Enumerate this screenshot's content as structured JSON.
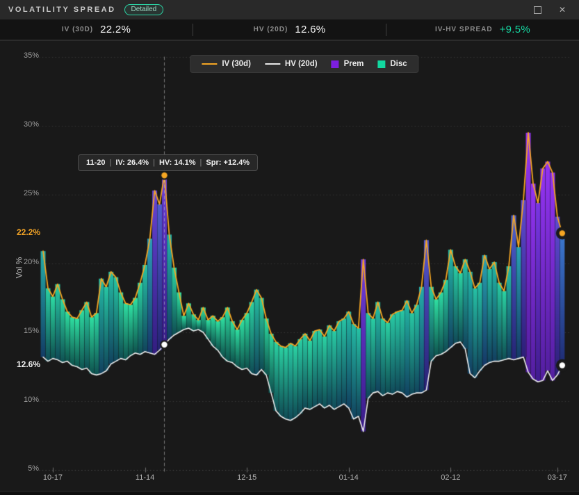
{
  "window": {
    "title": "VOLATILITY SPREAD",
    "badge": "Detailed",
    "controls": {
      "close": "✕"
    }
  },
  "stats": {
    "items": [
      {
        "label": "IV (30D)",
        "value": "22.2%",
        "color": "#f2f2f2"
      },
      {
        "label": "HV (20D)",
        "value": "12.6%",
        "color": "#f2f2f2"
      },
      {
        "label": "IV-HV SPREAD",
        "value": "+9.5%",
        "color": "#15d8a2"
      }
    ]
  },
  "legend": {
    "items": [
      {
        "label": "IV (30d)",
        "type": "line",
        "color": "#f5a623"
      },
      {
        "label": "HV (20d)",
        "type": "line",
        "color": "#e8e8e8"
      },
      {
        "label": "Prem",
        "type": "square",
        "color": "#7c1fe0"
      },
      {
        "label": "Disc",
        "type": "square",
        "color": "#12d8a0"
      }
    ]
  },
  "tooltip": {
    "date": "11-20",
    "sep": "|",
    "iv": "IV: 26.4%",
    "hv": "HV: 14.1%",
    "spread": "Spr: +12.4%"
  },
  "axis_current": {
    "iv_label": "22.2%",
    "hv_label": "12.6%"
  },
  "chart_data": {
    "type": "area",
    "ylabel": "Vol %",
    "ylim": [
      5,
      35
    ],
    "grid": "dotted-horizontal",
    "legend_position": "top-center",
    "yticks": [
      {
        "v": 35,
        "label": "35%"
      },
      {
        "v": 30,
        "label": "30%"
      },
      {
        "v": 25,
        "label": "25%"
      },
      {
        "v": 20,
        "label": "20%"
      },
      {
        "v": 15,
        "label": "15%"
      },
      {
        "v": 10,
        "label": "10%"
      },
      {
        "v": 5,
        "label": "5%"
      }
    ],
    "xticks": [
      {
        "i": 2,
        "label": "10-17"
      },
      {
        "i": 21,
        "label": "11-14"
      },
      {
        "i": 42,
        "label": "12-15"
      },
      {
        "i": 63,
        "label": "01-14"
      },
      {
        "i": 84,
        "label": "02-12"
      },
      {
        "i": 106,
        "label": "03-17"
      }
    ],
    "series": [
      {
        "name": "IV (30d)",
        "color": "#f5a623",
        "values": [
          20.9,
          18.2,
          17.6,
          18.5,
          17.4,
          16.5,
          16.1,
          16.0,
          16.6,
          17.2,
          16.1,
          16.4,
          18.9,
          18.3,
          19.4,
          19.0,
          17.9,
          17.1,
          17.0,
          17.5,
          18.6,
          19.9,
          21.8,
          25.3,
          24.3,
          26.4,
          22.1,
          19.7,
          17.9,
          16.2,
          17.1,
          16.3,
          15.9,
          16.8,
          15.9,
          16.2,
          15.8,
          16.1,
          16.8,
          15.8,
          15.2,
          15.9,
          16.4,
          17.2,
          18.1,
          17.5,
          16.0,
          14.9,
          14.3,
          14.0,
          13.9,
          14.2,
          14.0,
          14.5,
          14.9,
          14.4,
          15.1,
          15.2,
          14.7,
          15.5,
          15.1,
          15.8,
          16.0,
          16.5,
          15.6,
          15.3,
          20.3,
          16.4,
          16.0,
          17.2,
          16.0,
          15.7,
          16.3,
          16.5,
          16.6,
          17.3,
          16.4,
          17.0,
          18.3,
          21.7,
          18.3,
          17.4,
          17.9,
          18.8,
          21.0,
          19.8,
          19.3,
          20.3,
          19.4,
          18.2,
          18.6,
          20.6,
          19.6,
          20.1,
          18.6,
          18.0,
          19.8,
          23.5,
          21.2,
          24.6,
          29.5,
          25.8,
          24.4,
          26.9,
          27.4,
          26.6,
          23.4,
          22.2
        ]
      },
      {
        "name": "HV (20d)",
        "color": "#ececec",
        "values": [
          13.2,
          12.9,
          13.1,
          13.0,
          12.8,
          12.9,
          12.6,
          12.5,
          12.3,
          12.4,
          12.0,
          11.9,
          12.0,
          12.2,
          12.7,
          12.9,
          13.1,
          13.0,
          13.3,
          13.5,
          13.4,
          13.6,
          13.5,
          13.4,
          13.7,
          14.1,
          14.5,
          14.8,
          15.0,
          15.2,
          15.3,
          15.1,
          15.2,
          15.0,
          14.5,
          14.0,
          13.7,
          13.2,
          12.9,
          12.8,
          12.5,
          12.3,
          12.4,
          12.0,
          11.9,
          12.3,
          11.9,
          10.6,
          9.3,
          8.9,
          8.7,
          8.6,
          8.8,
          9.1,
          9.5,
          9.4,
          9.6,
          9.8,
          9.5,
          9.7,
          9.4,
          9.6,
          9.8,
          9.5,
          8.7,
          8.9,
          7.8,
          10.2,
          10.6,
          10.7,
          10.4,
          10.6,
          10.5,
          10.7,
          10.6,
          10.3,
          10.5,
          10.6,
          10.6,
          10.8,
          12.9,
          13.3,
          13.4,
          13.6,
          13.9,
          14.2,
          14.3,
          13.8,
          12.0,
          11.7,
          12.2,
          12.6,
          12.8,
          12.9,
          12.9,
          13.0,
          13.1,
          13.0,
          13.1,
          13.2,
          12.1,
          11.6,
          11.4,
          11.5,
          12.2,
          11.5,
          11.9,
          12.6
        ]
      }
    ],
    "fill": {
      "spread_domain": [
        4,
        14
      ],
      "scale": [
        {
          "t": 0.0,
          "top": "#2fe0a2",
          "bottom": "#0e544e"
        },
        {
          "t": 0.35,
          "top": "#22b4a6",
          "bottom": "#123e63"
        },
        {
          "t": 0.55,
          "top": "#3a7cd0",
          "bottom": "#1e2c74"
        },
        {
          "t": 0.72,
          "top": "#5a4ecd",
          "bottom": "#2b2076"
        },
        {
          "t": 0.88,
          "top": "#7436e0",
          "bottom": "#3d1c8c"
        },
        {
          "t": 1.0,
          "top": "#9334f2",
          "bottom": "#531fa0"
        }
      ]
    },
    "crosshair": {
      "index": 25,
      "date": "11-20",
      "iv": 26.4,
      "hv": 14.1
    }
  }
}
